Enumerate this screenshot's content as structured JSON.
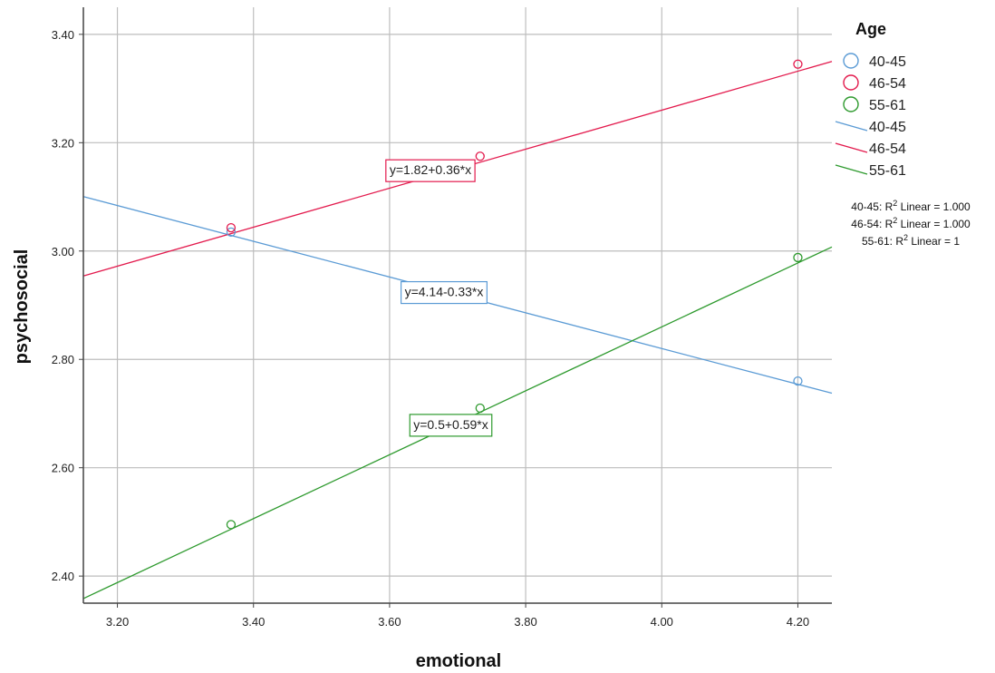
{
  "chart_data": {
    "type": "scatter",
    "xlabel": "emotional",
    "ylabel": "psychosocial",
    "xlim": [
      3.15,
      4.25
    ],
    "ylim": [
      2.35,
      3.45
    ],
    "xticks": [
      "3.20",
      "3.40",
      "3.60",
      "3.80",
      "4.00",
      "4.20"
    ],
    "yticks": [
      "2.40",
      "2.60",
      "2.80",
      "3.00",
      "3.20",
      "3.40"
    ],
    "grid": true,
    "legend": {
      "title": "Age",
      "position": "top-right",
      "marker_entries": [
        "40-45",
        "46-54",
        "55-61"
      ],
      "line_entries": [
        "40-45",
        "46-54",
        "55-61"
      ]
    },
    "r2_notes": [
      {
        "prefix": "40-45: R",
        "sup": "2",
        "suffix": " Linear = 1.000"
      },
      {
        "prefix": "46-54: R",
        "sup": "2",
        "suffix": " Linear = 1.000"
      },
      {
        "prefix": "55-61: R",
        "sup": "2",
        "suffix": " Linear = 1"
      }
    ],
    "series": [
      {
        "name": "40-45",
        "color": "#5b9bd5",
        "points": [
          [
            3.367,
            3.035
          ],
          [
            4.2,
            2.76
          ]
        ],
        "fit": {
          "intercept": 4.14,
          "slope": -0.33,
          "equation": "y=4.14-0.33*x",
          "label_at": [
            3.68,
            2.925
          ]
        }
      },
      {
        "name": "46-54",
        "color": "#e31a4d",
        "points": [
          [
            3.367,
            3.043
          ],
          [
            3.733,
            3.175
          ],
          [
            4.2,
            3.345
          ]
        ],
        "fit": {
          "intercept": 1.82,
          "slope": 0.36,
          "equation": "y=1.82+0.36*x",
          "label_at": [
            3.66,
            3.15
          ]
        }
      },
      {
        "name": "55-61",
        "color": "#2e9a2e",
        "points": [
          [
            3.367,
            2.495
          ],
          [
            3.733,
            2.71
          ],
          [
            4.2,
            2.988
          ]
        ],
        "fit": {
          "intercept": 0.5,
          "slope": 0.59,
          "equation": "y=0.5+0.59*x",
          "label_at": [
            3.69,
            2.68
          ]
        }
      }
    ]
  }
}
